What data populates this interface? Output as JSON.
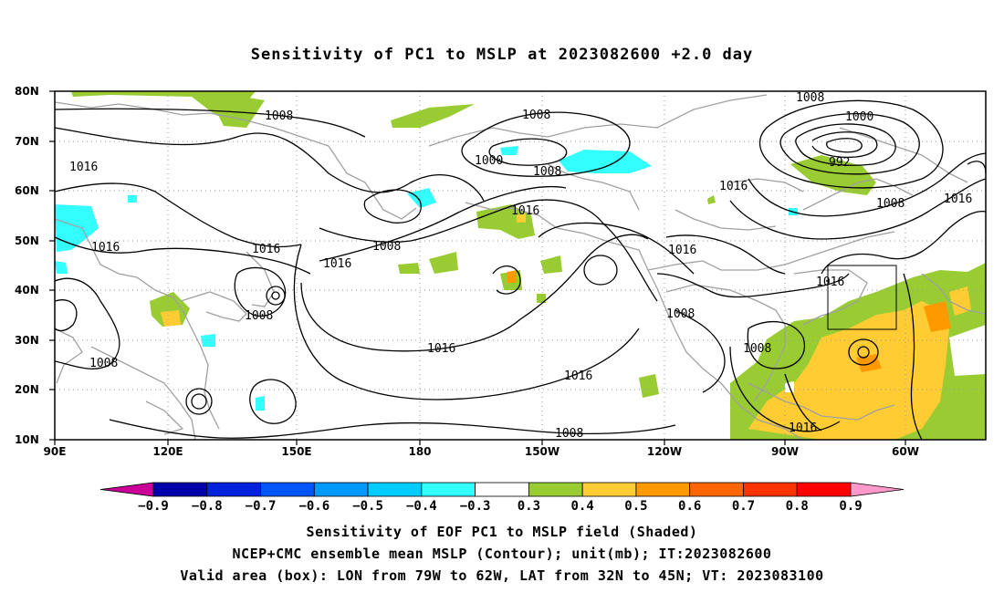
{
  "title": "Sensitivity of PC1 to MSLP at 2023082600 +2.0 day",
  "map": {
    "lat_ticks": [
      "80N",
      "70N",
      "60N",
      "50N",
      "40N",
      "30N",
      "20N",
      "10N"
    ],
    "lon_ticks": [
      "90E",
      "120E",
      "150E",
      "180",
      "150W",
      "120W",
      "90W",
      "60W"
    ],
    "contour_labels": [
      "1008",
      "1008",
      "1000",
      "1008",
      "1016",
      "1016",
      "1016",
      "1008",
      "1016",
      "1016",
      "1016",
      "1008",
      "1008",
      "1016",
      "1016",
      "1008",
      "1016",
      "1008",
      "1000",
      "992",
      "1008",
      "1016",
      "1016",
      "1008",
      "1008"
    ],
    "shading_colors": {
      "pos_03": "#99cc33",
      "pos_04": "#ffcc33",
      "pos_05": "#ff9900",
      "neg_03": "#33ffff",
      "neg_04": "#00ccff"
    }
  },
  "colorbar": {
    "labels": [
      "-0.9",
      "-0.8",
      "-0.7",
      "-0.6",
      "-0.5",
      "-0.4",
      "-0.3",
      "0.3",
      "0.4",
      "0.5",
      "0.6",
      "0.7",
      "0.8",
      "0.9"
    ],
    "colors": [
      "#cc0099",
      "#0000aa",
      "#0022dd",
      "#0055ff",
      "#0099ff",
      "#00ccff",
      "#33ffff",
      "#ffffff",
      "#99cc33",
      "#ffcc33",
      "#ff9900",
      "#ff6600",
      "#ff3300",
      "#ff0000",
      "#ff99cc"
    ]
  },
  "captions": [
    "Sensitivity of EOF PC1 to MSLP field (Shaded)",
    "NCEP+CMC ensemble mean MSLP (Contour); unit(mb); IT:2023082600",
    "Valid area (box): LON from 79W to 62W, LAT from 32N to 45N; VT: 2023083100"
  ]
}
